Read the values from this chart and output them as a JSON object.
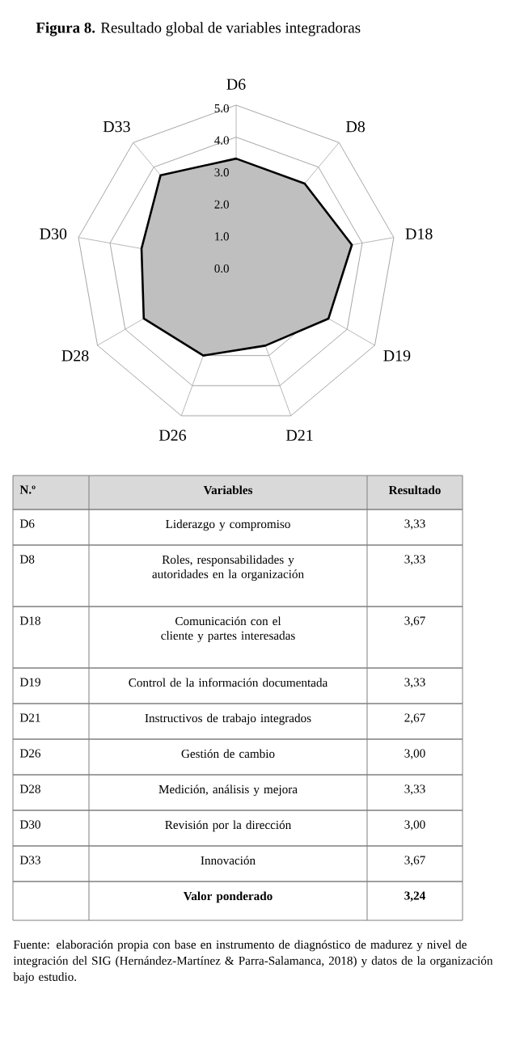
{
  "chart_data": {
    "type": "radar",
    "title": "**Figura 8.** Resultado global de variables integradoras",
    "categories": [
      "D6",
      "D8",
      "D18",
      "D19",
      "D21",
      "D26",
      "D28",
      "D30",
      "D33"
    ],
    "series": [
      {
        "color": "#bfbfbf",
        "values": [
          3.33,
          3.33,
          3.67,
          3.33,
          2.67,
          3.0,
          3.33,
          3.0,
          3.67
        ]
      }
    ],
    "ylim": [
      0,
      5
    ],
    "yticks": [
      {
        "value": 0,
        "label": "0.0"
      },
      {
        "value": 1,
        "label": "1.0"
      },
      {
        "value": 2,
        "label": "2.0"
      },
      {
        "value": 3,
        "label": "3.0"
      },
      {
        "value": 4,
        "label": "4.0"
      },
      {
        "value": 5,
        "label": "5.0"
      }
    ],
    "grid": true,
    "annotations": [
      "N.º",
      "Variables",
      "Resultado",
      "Liderazgo y compromiso",
      "Roles, responsabilidades y autoridades en la organización",
      "Comunicación con el cliente y partes interesadas",
      "Control de la información documentada",
      "Instructivos de trabajo integrados",
      "Gestión de cambio",
      "Medición, análisis y mejora",
      "Revisión por la dirección",
      "Innovación",
      "Valor ponderado",
      "3,24",
      "3,33",
      "3,33",
      "3,67",
      "3,33",
      "2,67",
      "3,00",
      "3,33",
      "3,00",
      "3,67",
      "Fuente: elaboración propia con base en instrumento de diagnóstico de madurez y nivel de integración del SIG (Hernández-Martínez & Parra-Salamanca, 2018) y datos de la organización bajo estudio."
    ]
  }
}
